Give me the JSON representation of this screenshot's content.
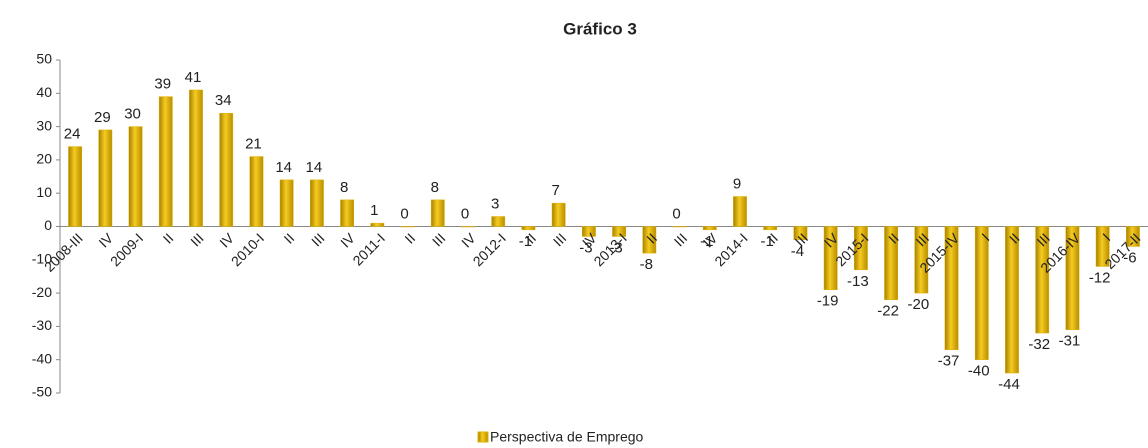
{
  "chart_data": {
    "type": "bar",
    "title": "Gráfico 3",
    "categories": [
      "2008-III",
      "IV",
      "2009-I",
      "II",
      "III",
      "IV",
      "2010-I",
      "II",
      "III",
      "IV",
      "2011-I",
      "II",
      "III",
      "IV",
      "2012-I",
      "II",
      "III",
      "IV",
      "2013-I",
      "II",
      "III",
      "IV",
      "2014-I",
      "II",
      "III",
      "IV",
      "2015-I",
      "II",
      "III",
      "2015-IV",
      "I",
      "II",
      "III",
      "2016-IV",
      "I",
      "2017-II"
    ],
    "series": [
      {
        "name": "Perspectiva de Emprego",
        "color": "#e0b000",
        "values": [
          24,
          29,
          30,
          39,
          41,
          34,
          21,
          14,
          14,
          8,
          1,
          0,
          8,
          0,
          3,
          -1,
          7,
          -3,
          -3,
          -8,
          0,
          -1,
          9,
          -1,
          -4,
          -19,
          -13,
          -22,
          -20,
          -37,
          -40,
          -44,
          -32,
          -31,
          -12,
          -6
        ]
      }
    ],
    "ylim": [
      -50,
      50
    ],
    "yticks": [
      -50,
      -40,
      -30,
      -20,
      -10,
      0,
      10,
      20,
      30,
      40,
      50
    ],
    "legend": "bottom"
  }
}
